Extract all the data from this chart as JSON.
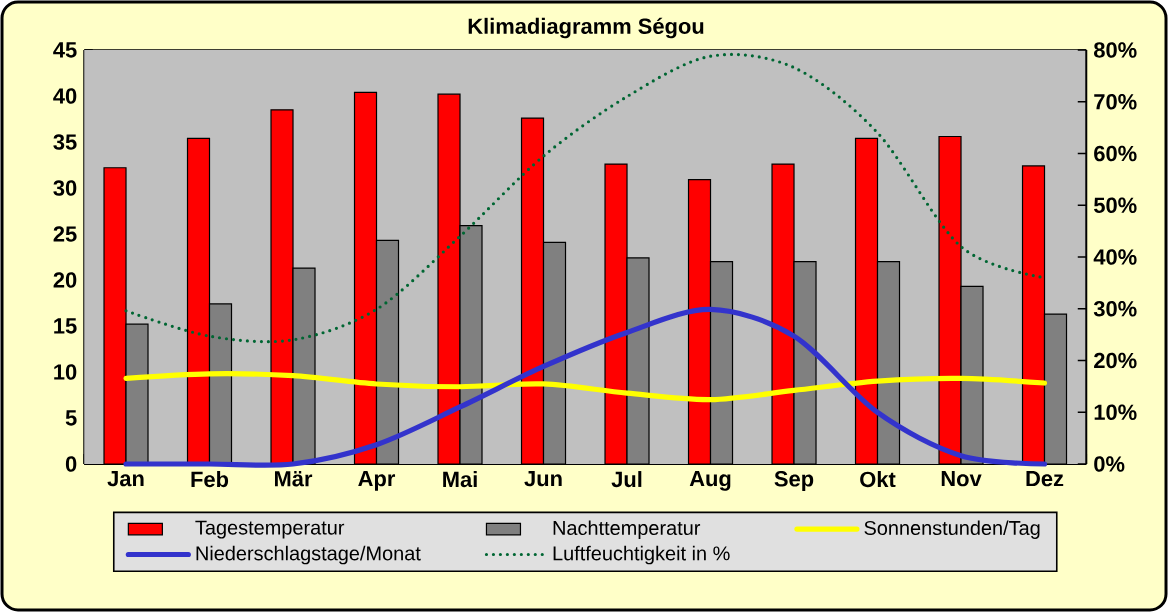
{
  "chart_data": {
    "type": "bar",
    "title": "Klimadiagramm Ségou",
    "categories": [
      "Jan",
      "Feb",
      "Mär",
      "Apr",
      "Mai",
      "Jun",
      "Jul",
      "Aug",
      "Sep",
      "Okt",
      "Nov",
      "Dez"
    ],
    "series": [
      {
        "name": "Tagestemperatur",
        "color": "#ff0000",
        "values": [
          32.2,
          35.4,
          38.5,
          40.4,
          40.2,
          37.6,
          32.6,
          30.9,
          32.6,
          35.4,
          35.6,
          32.4
        ]
      },
      {
        "name": "Nachttemperatur",
        "color": "#808080",
        "values": [
          15.2,
          17.4,
          21.3,
          24.3,
          25.9,
          24.1,
          22.4,
          22.0,
          22.0,
          22.0,
          19.3,
          16.3
        ]
      },
      {
        "name": "Sonnenstunden/Tag",
        "type": "line",
        "color": "#ffff00",
        "line_style": "solid",
        "values": [
          9.3,
          9.8,
          9.6,
          8.7,
          8.4,
          8.7,
          7.7,
          7.0,
          8.0,
          9.0,
          9.3,
          8.8
        ]
      },
      {
        "name": "Niederschlagstage/Monat",
        "type": "line",
        "color": "#3333cc",
        "line_style": "solid",
        "values": [
          0,
          0,
          0,
          2.1,
          6.2,
          10.6,
          14.3,
          16.8,
          13.9,
          5.6,
          0.9,
          0
        ]
      },
      {
        "name": "Luftfeuchtigkeit in %",
        "type": "line",
        "color": "#006633",
        "line_style": "dotted",
        "axis": "y2",
        "values": [
          29.6,
          24.7,
          24,
          29.9,
          44,
          59.5,
          71,
          78.8,
          76.6,
          64,
          42,
          36
        ]
      }
    ],
    "ylim": [
      0,
      45
    ],
    "yticks": [
      0,
      5,
      10,
      15,
      20,
      25,
      30,
      35,
      40,
      45
    ],
    "y2lim": [
      0,
      80
    ],
    "y2ticks": [
      {
        "value": 0,
        "label": "0%"
      },
      {
        "value": 10,
        "label": "10%"
      },
      {
        "value": 20,
        "label": "20%"
      },
      {
        "value": 30,
        "label": "30%"
      },
      {
        "value": 40,
        "label": "40%"
      },
      {
        "value": 50,
        "label": "50%"
      },
      {
        "value": 60,
        "label": "60%"
      },
      {
        "value": 70,
        "label": "70%"
      },
      {
        "value": 80,
        "label": "80%"
      }
    ],
    "grid": "y",
    "legend": "bottom",
    "marker": "none"
  }
}
